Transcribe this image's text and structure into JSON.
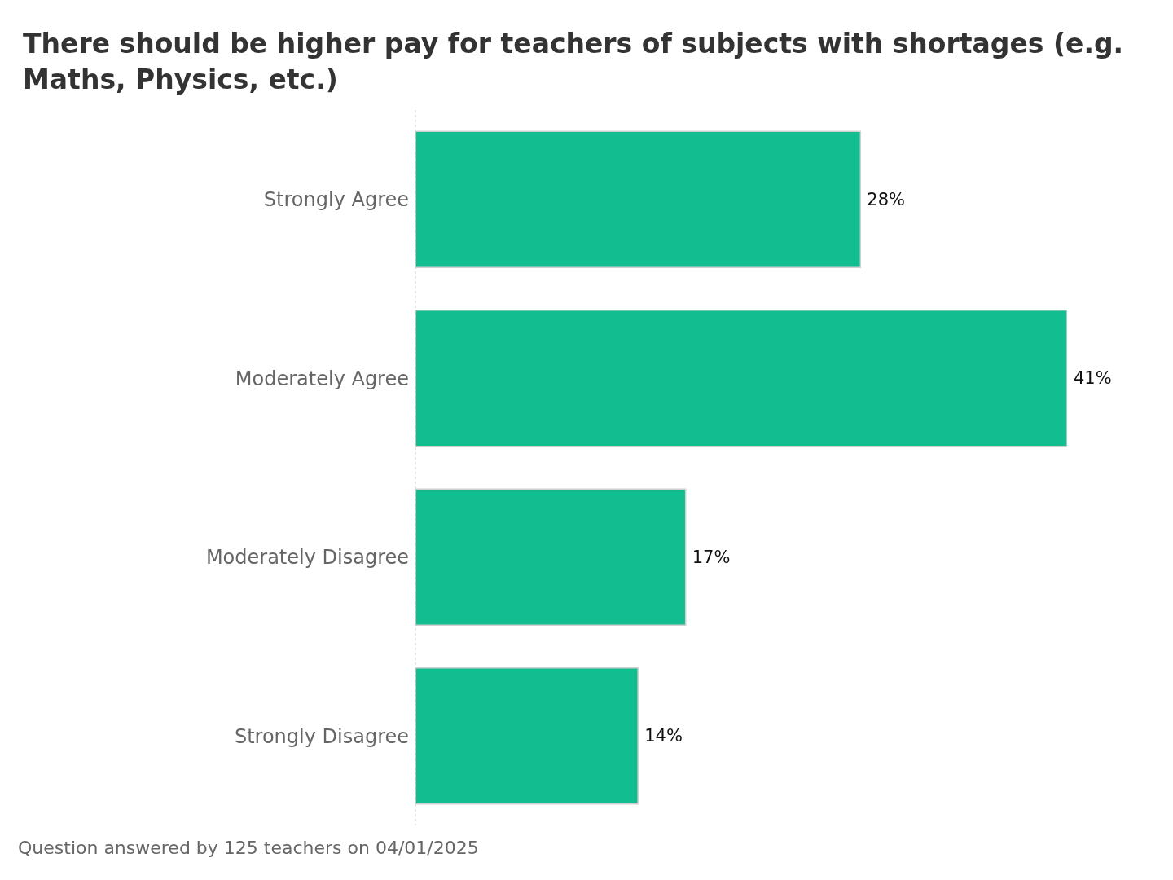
{
  "chart_data": {
    "type": "bar",
    "orientation": "horizontal",
    "title": "There should be higher pay for teachers of subjects with shortages (e.g. Maths, Physics, etc.)",
    "categories": [
      "Strongly Agree",
      "Moderately Agree",
      "Moderately Disagree",
      "Strongly Disagree"
    ],
    "values": [
      28,
      41,
      17,
      14
    ],
    "value_labels": [
      "28%",
      "41%",
      "17%",
      "14%"
    ],
    "color": "#12be8f",
    "annotations": [
      "Question answered by 125 teachers on 04/01/2025"
    ]
  }
}
